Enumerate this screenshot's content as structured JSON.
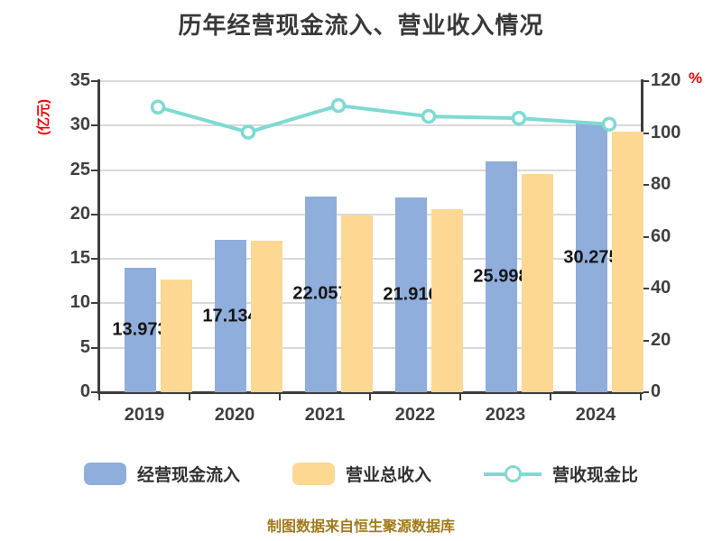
{
  "title": "历年经营现金流入、营业收入情况",
  "footer": "制图数据来自恒生聚源数据库",
  "chart_data": {
    "type": "bar",
    "title": "历年经营现金流入、营业收入情况",
    "categories": [
      "2019",
      "2020",
      "2021",
      "2022",
      "2023",
      "2024"
    ],
    "series": [
      {
        "name": "经营现金流入",
        "type": "bar",
        "axis": "left",
        "color": "#8faedc",
        "values": [
          13.973,
          17.134,
          22.057,
          21.916,
          25.998,
          30.275
        ],
        "labels": [
          "13.973",
          "17.134",
          "22.057",
          "21.916",
          "25.998",
          "30.275"
        ]
      },
      {
        "name": "营业总收入",
        "type": "bar",
        "axis": "left",
        "color": "#fcd893",
        "values": [
          12.7,
          17.05,
          19.9,
          20.6,
          24.6,
          29.3
        ]
      },
      {
        "name": "营收现金比",
        "type": "line",
        "axis": "right",
        "color": "#7edad2",
        "marker_fill": "#ffffff",
        "values": [
          110.0,
          100.3,
          110.6,
          106.4,
          105.7,
          103.4
        ]
      }
    ],
    "left_axis": {
      "label": "(亿元)",
      "min": 0,
      "max": 35,
      "step": 5,
      "ticks": [
        "35",
        "30",
        "25",
        "20",
        "15",
        "10",
        "5",
        "0"
      ]
    },
    "right_axis": {
      "label": "%",
      "min": 0,
      "max": 120,
      "step": 20,
      "ticks": [
        "120",
        "100",
        "80",
        "60",
        "40",
        "20",
        "0"
      ]
    },
    "grid": true,
    "grid_color": "#d9d9d9",
    "legend_position": "bottom"
  }
}
